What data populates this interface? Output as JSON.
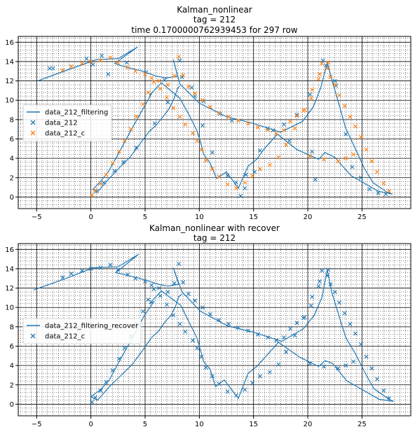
{
  "colors": {
    "filter": "#1f77b4",
    "meas": "#1f77b4",
    "corr": "#ff7f0e",
    "grid_major": "#000000",
    "grid_minor": "#000000"
  },
  "chart_data": [
    {
      "type": "line",
      "title_lines": [
        "Kalman_nonlinear",
        "tag = 212",
        "time 0.1700000762939453 for 297 row"
      ],
      "xlim": [
        -6.7,
        29.5
      ],
      "ylim": [
        -1.2,
        16.6
      ],
      "xticks": [
        -5,
        0,
        5,
        10,
        15,
        20,
        25
      ],
      "yticks": [
        0,
        2,
        4,
        6,
        8,
        10,
        12,
        14,
        16
      ],
      "grid": "major+minor",
      "legend_position": "center-left",
      "legend": [
        "data_212_filtering",
        "data_212",
        "data_212_c"
      ],
      "series": [
        {
          "name": "data_212_filtering",
          "kind": "line",
          "color": "#1f77b4",
          "x": [
            -4.9,
            -2.0,
            0.5,
            2.5,
            4.3,
            2.2,
            3.0,
            4.8,
            6.0,
            7.0,
            8.0,
            7.6,
            8.2,
            10.0,
            12.5,
            15.0,
            17.5,
            19.5,
            20.5,
            21.2,
            21.8,
            22.3,
            22.9,
            23.5,
            24.3,
            25.2,
            26.0,
            27.3,
            27.8,
            26.5,
            25.4,
            24.0,
            22.5,
            21.6,
            21.0,
            19.0,
            17.2,
            16.0,
            15.3,
            14.5,
            13.6,
            12.5,
            11.6,
            11.0,
            10.4,
            10.1,
            9.8,
            9.0,
            8.2,
            6.5,
            5.4,
            5.6,
            4.8,
            3.8,
            2.6,
            1.6,
            0.8,
            0.2,
            0.6,
            1.6,
            2.6,
            3.6,
            4.6,
            5.4,
            6.0,
            6.8,
            7.2,
            7.6,
            8.0,
            8.2
          ],
          "y": [
            12.0,
            13.2,
            14.2,
            14.3,
            15.5,
            13.8,
            13.5,
            13.0,
            12.5,
            12.3,
            12.5,
            14.2,
            11.7,
            9.7,
            8.3,
            7.6,
            6.7,
            7.8,
            9.3,
            11.3,
            13.9,
            11.8,
            9.5,
            7.1,
            5.2,
            3.0,
            1.5,
            0.5,
            0.3,
            0.6,
            1.3,
            2.2,
            4.1,
            4.6,
            3.9,
            4.9,
            6.5,
            5.0,
            3.9,
            3.2,
            0.9,
            2.6,
            1.9,
            3.5,
            4.4,
            5.7,
            6.8,
            8.6,
            10.2,
            11.8,
            10.5,
            10.7,
            9.1,
            7.1,
            4.6,
            2.6,
            1.5,
            0.8,
            0.5,
            1.8,
            3.0,
            4.1,
            5.6,
            6.8,
            7.4,
            8.5,
            9.1,
            10.0,
            11.2,
            11.5
          ]
        },
        {
          "name": "data_212",
          "kind": "scatter-x",
          "color": "#1f77b4",
          "x": [
            -3.8,
            -3.5,
            -0.4,
            0.2,
            1.6,
            1.0,
            3.3,
            5.1,
            6.8,
            8.2,
            9.3,
            10.4,
            11.9,
            13.0,
            13.4,
            14.2,
            15.1,
            16.3,
            17.8,
            19.0,
            20.4,
            20.7,
            21.7,
            22.5,
            23.5,
            24.1,
            24.9,
            25.7,
            26.5,
            27.2,
            22.6,
            21.4,
            20.2,
            18.3,
            16.8,
            15.6,
            14.3,
            13.8,
            12.6,
            11.2,
            10.3,
            9.6,
            8.4,
            7.1,
            5.9,
            4.2,
            3.0,
            2.2,
            1.2,
            0.5
          ],
          "y": [
            13.3,
            13.3,
            14.3,
            13.7,
            12.7,
            14.6,
            13.9,
            12.9,
            12.1,
            14.1,
            11.3,
            9.9,
            8.6,
            7.9,
            1.5,
            0.9,
            2.6,
            7.1,
            7.5,
            8.5,
            4.7,
            1.8,
            13.6,
            12.0,
            6.5,
            3.1,
            2.0,
            0.8,
            0.4,
            0.3,
            11.5,
            14.1,
            10.6,
            5.8,
            6.9,
            4.8,
            2.3,
            0.1,
            2.2,
            4.6,
            7.4,
            10.4,
            12.4,
            9.8,
            7.6,
            5.1,
            3.6,
            2.7,
            1.5,
            0.6
          ]
        },
        {
          "name": "data_212_c",
          "kind": "scatter-x",
          "color": "#ff7f0e",
          "x": [
            -2.6,
            -1.8,
            -0.8,
            0.0,
            0.9,
            1.8,
            2.5,
            3.4,
            4.1,
            5.0,
            5.6,
            6.3,
            7.1,
            7.7,
            8.1,
            8.5,
            9.0,
            9.6,
            10.3,
            11.0,
            11.8,
            12.7,
            13.6,
            14.5,
            15.4,
            16.3,
            17.1,
            17.8,
            18.4,
            19.0,
            19.7,
            20.3,
            21.0,
            21.3,
            21.8,
            22.1,
            22.5,
            22.9,
            23.4,
            23.9,
            24.4,
            24.9,
            25.4,
            25.9,
            26.4,
            27.0,
            27.5,
            21.9,
            21.1,
            20.4,
            19.6,
            18.8,
            18.0,
            17.3,
            16.5,
            15.6,
            14.9,
            14.2,
            13.4,
            12.6,
            11.8,
            11.2,
            10.6,
            10.2,
            9.8,
            9.4,
            8.7,
            8.2,
            7.6,
            7.0,
            6.4,
            5.8,
            5.3,
            4.8,
            4.2,
            3.7,
            3.1,
            2.6,
            2.0,
            1.4,
            0.9,
            0.4,
            0.1,
            23.5,
            24.2,
            22.8,
            21.5,
            20.2
          ],
          "y": [
            13.1,
            13.5,
            13.8,
            14.0,
            14.1,
            14.4,
            13.9,
            13.4,
            13.0,
            12.7,
            12.3,
            12.0,
            11.6,
            12.5,
            14.5,
            12.6,
            11.4,
            10.7,
            10.0,
            9.3,
            8.7,
            8.3,
            7.9,
            7.6,
            7.2,
            6.9,
            6.6,
            6.9,
            7.8,
            8.4,
            9.0,
            10.2,
            12.2,
            13.8,
            13.3,
            12.4,
            11.6,
            10.5,
            9.4,
            8.3,
            7.3,
            6.2,
            4.9,
            3.7,
            2.6,
            1.4,
            0.6,
            13.9,
            12.7,
            11.1,
            8.9,
            7.1,
            5.4,
            4.1,
            3.3,
            2.9,
            2.2,
            1.5,
            0.9,
            1.3,
            2.1,
            2.9,
            3.8,
            4.9,
            5.8,
            6.6,
            7.5,
            8.3,
            9.2,
            10.3,
            11.2,
            11.9,
            10.8,
            9.6,
            8.3,
            7.0,
            5.8,
            4.7,
            3.5,
            2.3,
            1.4,
            0.7,
            0.2,
            4.0,
            4.4,
            3.7,
            3.9,
            4.2
          ]
        }
      ]
    },
    {
      "type": "line",
      "title_lines": [
        "Kalman_nonlinear with recover",
        "tag = 212"
      ],
      "xlim": [
        -6.7,
        29.5
      ],
      "ylim": [
        -1.2,
        16.6
      ],
      "xticks": [
        -5,
        0,
        5,
        10,
        15,
        20,
        25
      ],
      "yticks": [
        0,
        2,
        4,
        6,
        8,
        10,
        12,
        14,
        16
      ],
      "grid": "major+minor",
      "legend_position": "center-left",
      "legend": [
        "data_212_filtering_recover",
        "data_212_c"
      ],
      "series": [
        {
          "name": "data_212_filtering_recover",
          "kind": "line",
          "color": "#1f77b4",
          "x": [
            -5.3,
            -2.3,
            0.2,
            2.5,
            4.4,
            2.3,
            3.1,
            4.8,
            6.2,
            7.1,
            8.1,
            7.6,
            8.4,
            10.1,
            12.6,
            15.1,
            17.6,
            19.6,
            20.6,
            21.3,
            21.8,
            22.2,
            22.8,
            23.5,
            24.4,
            25.4,
            26.1,
            27.5,
            27.9,
            26.6,
            25.2,
            23.6,
            22.3,
            21.6,
            21.0,
            19.2,
            17.3,
            16.1,
            15.3,
            14.5,
            13.6,
            12.3,
            11.5,
            11.0,
            10.4,
            10.1,
            9.8,
            9.0,
            8.3,
            6.5,
            5.4,
            5.8,
            4.9,
            3.9,
            2.7,
            1.7,
            0.9,
            0.0,
            0.6,
            1.7,
            2.8,
            3.8,
            4.8,
            5.6,
            6.2,
            6.9,
            7.4,
            7.8,
            8.1,
            8.4
          ],
          "y": [
            11.8,
            13.0,
            14.1,
            14.2,
            15.5,
            13.6,
            13.4,
            12.9,
            12.4,
            12.2,
            12.4,
            14.1,
            11.6,
            9.6,
            8.1,
            7.4,
            6.5,
            7.8,
            9.2,
            11.0,
            13.9,
            11.6,
            9.4,
            6.9,
            5.2,
            3.0,
            1.6,
            0.5,
            0.3,
            0.5,
            1.4,
            2.4,
            4.2,
            4.5,
            3.9,
            4.9,
            6.4,
            4.9,
            3.9,
            3.2,
            0.6,
            2.5,
            1.8,
            3.6,
            4.4,
            5.6,
            6.8,
            8.6,
            10.2,
            11.7,
            10.4,
            10.6,
            9.1,
            7.0,
            4.6,
            2.5,
            1.5,
            0.8,
            0.4,
            1.8,
            3.0,
            4.1,
            5.6,
            6.9,
            7.5,
            8.6,
            9.2,
            10.1,
            11.1,
            11.4
          ]
        },
        {
          "name": "data_212_c",
          "kind": "scatter-x",
          "color": "#1f77b4",
          "x": [
            -2.6,
            -1.8,
            -0.8,
            0.0,
            0.9,
            1.8,
            2.5,
            3.4,
            4.1,
            5.0,
            5.6,
            6.3,
            7.1,
            7.7,
            8.1,
            8.5,
            9.0,
            9.6,
            10.3,
            11.0,
            11.8,
            12.7,
            13.6,
            14.5,
            15.4,
            16.3,
            17.1,
            17.8,
            18.4,
            19.0,
            19.7,
            20.3,
            21.0,
            21.3,
            21.8,
            22.1,
            22.5,
            22.9,
            23.4,
            23.9,
            24.4,
            24.9,
            25.4,
            25.9,
            26.4,
            27.0,
            27.5,
            21.9,
            21.1,
            20.4,
            19.6,
            18.8,
            18.0,
            17.3,
            16.5,
            15.6,
            14.9,
            14.2,
            13.4,
            12.6,
            11.8,
            11.2,
            10.6,
            10.2,
            9.8,
            9.4,
            8.7,
            8.2,
            7.6,
            7.0,
            6.4,
            5.8,
            5.3,
            4.8,
            4.2,
            3.7,
            3.1,
            2.6,
            2.0,
            1.4,
            0.9,
            0.4,
            0.1,
            23.5,
            24.2,
            22.8,
            21.5,
            20.2
          ],
          "y": [
            13.1,
            13.5,
            13.8,
            14.0,
            14.1,
            14.4,
            13.9,
            13.4,
            13.0,
            12.7,
            12.3,
            12.0,
            11.6,
            12.5,
            14.5,
            12.6,
            11.4,
            10.7,
            10.0,
            9.3,
            8.7,
            8.3,
            7.9,
            7.6,
            7.2,
            6.9,
            6.6,
            6.9,
            7.8,
            8.4,
            9.0,
            10.2,
            12.2,
            13.8,
            13.3,
            12.4,
            11.6,
            10.5,
            9.4,
            8.3,
            7.3,
            6.2,
            4.9,
            3.7,
            2.6,
            1.4,
            0.6,
            13.9,
            12.7,
            11.1,
            8.9,
            7.1,
            5.4,
            4.1,
            3.3,
            2.9,
            2.2,
            1.5,
            0.9,
            1.3,
            2.1,
            2.9,
            3.8,
            4.9,
            5.8,
            6.6,
            7.5,
            8.3,
            9.2,
            10.3,
            11.2,
            11.9,
            10.8,
            9.6,
            8.3,
            7.0,
            5.8,
            4.7,
            3.5,
            2.3,
            1.4,
            0.7,
            0.2,
            4.0,
            4.4,
            3.7,
            3.9,
            4.2
          ]
        }
      ]
    }
  ]
}
